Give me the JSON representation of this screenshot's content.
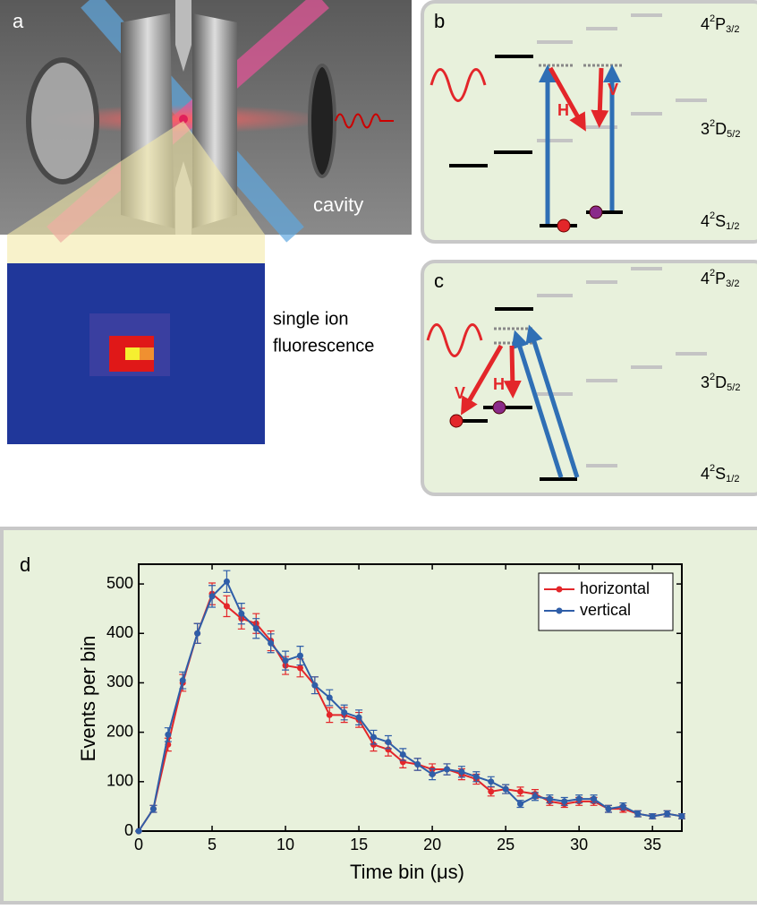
{
  "panel_a": {
    "label": "a",
    "cavity_label": "cavity",
    "caption_lines": [
      "single ion",
      "fluorescence"
    ]
  },
  "panel_b": {
    "label": "b",
    "arrow_labels": [
      "H",
      "V"
    ],
    "levels": [
      {
        "base": "4",
        "sup": "2",
        "term": "P",
        "sub": "3/2"
      },
      {
        "base": "3",
        "sup": "2",
        "term": "D",
        "sub": "5/2"
      },
      {
        "base": "4",
        "sup": "2",
        "term": "S",
        "sub": "1/2"
      }
    ]
  },
  "panel_c": {
    "label": "c",
    "arrow_labels": [
      "V",
      "H"
    ],
    "levels": [
      {
        "base": "4",
        "sup": "2",
        "term": "P",
        "sub": "3/2"
      },
      {
        "base": "3",
        "sup": "2",
        "term": "D",
        "sub": "5/2"
      },
      {
        "base": "4",
        "sup": "2",
        "term": "S",
        "sub": "1/2"
      }
    ]
  },
  "chart_data": {
    "type": "line",
    "panel_label": "d",
    "xlabel": "Time bin (μs)",
    "ylabel": "Events per bin",
    "x": [
      0,
      1,
      2,
      3,
      4,
      5,
      6,
      7,
      8,
      9,
      10,
      11,
      12,
      13,
      14,
      15,
      16,
      17,
      18,
      19,
      20,
      21,
      22,
      23,
      24,
      25,
      26,
      27,
      28,
      29,
      30,
      31,
      32,
      33,
      34,
      35,
      36,
      37
    ],
    "series": [
      {
        "name": "horizontal",
        "color": "#e3262a",
        "values": [
          0,
          45,
          175,
          300,
          400,
          480,
          455,
          430,
          420,
          385,
          335,
          330,
          295,
          235,
          235,
          225,
          175,
          165,
          140,
          135,
          125,
          125,
          115,
          105,
          80,
          85,
          80,
          75,
          60,
          55,
          60,
          60,
          45,
          45,
          35,
          30,
          35,
          30
        ],
        "errors": [
          0,
          7,
          13,
          17,
          20,
          22,
          21,
          21,
          20,
          20,
          18,
          18,
          17,
          15,
          15,
          15,
          13,
          13,
          12,
          12,
          11,
          11,
          11,
          10,
          9,
          9,
          9,
          9,
          8,
          7,
          8,
          8,
          7,
          7,
          6,
          5,
          6,
          5
        ]
      },
      {
        "name": "vertical",
        "color": "#2f5ea8",
        "values": [
          0,
          45,
          195,
          305,
          400,
          475,
          505,
          440,
          410,
          380,
          345,
          355,
          295,
          270,
          240,
          230,
          190,
          180,
          155,
          135,
          115,
          125,
          120,
          110,
          100,
          85,
          55,
          70,
          65,
          60,
          65,
          65,
          45,
          50,
          35,
          30,
          35,
          30
        ],
        "errors": [
          0,
          7,
          14,
          17,
          20,
          22,
          22,
          21,
          20,
          19,
          19,
          19,
          17,
          16,
          15,
          15,
          14,
          13,
          12,
          12,
          11,
          11,
          11,
          10,
          10,
          9,
          7,
          8,
          8,
          8,
          8,
          8,
          7,
          7,
          6,
          5,
          6,
          5
        ]
      }
    ],
    "xlim": [
      0,
      37
    ],
    "ylim": [
      0,
      540
    ],
    "xticks": [
      0,
      5,
      10,
      15,
      20,
      25,
      30,
      35
    ],
    "yticks": [
      0,
      100,
      200,
      300,
      400,
      500
    ],
    "legend": "upper right"
  }
}
